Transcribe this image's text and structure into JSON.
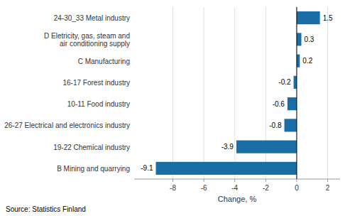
{
  "chart_data": {
    "type": "bar",
    "orientation": "horizontal",
    "categories": [
      "B Mining and quarrying",
      "19-22 Chemical industry",
      "26-27 Electrical and electronics industry",
      "10-11 Food industry",
      "16-17 Forest industry",
      "C Manufacturing",
      "D Eletricity, gas, steam and\nair conditioning supply",
      "24-30_33 Metal industry"
    ],
    "values": [
      -9.1,
      -3.9,
      -0.8,
      -0.6,
      -0.2,
      0.2,
      0.3,
      1.5
    ],
    "color": "#1a6ea8",
    "xlim": [
      -10.5,
      2.8
    ],
    "xticks": [
      -8,
      -6,
      -4,
      -2,
      0,
      2
    ],
    "xlabel": "Change, %",
    "annotations": [
      "Source: Statistics Finland"
    ],
    "grid": true,
    "data_labels": true
  }
}
